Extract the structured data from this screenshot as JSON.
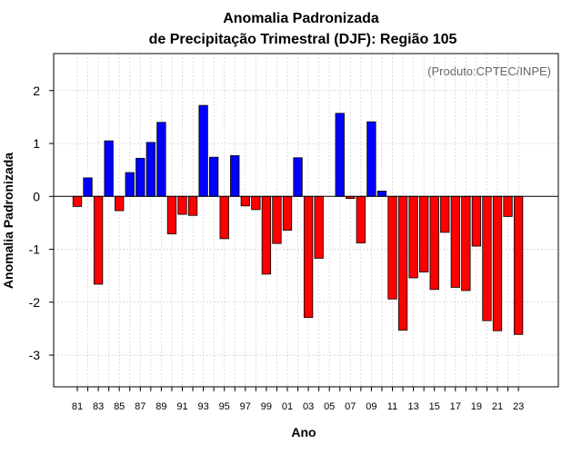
{
  "chart_data": {
    "type": "bar",
    "title": "Anomalia Padronizada",
    "subtitle": "de Precipitação Trimestral (DJF): Região 105",
    "xlabel": "Ano",
    "ylabel": "Anomalia Padronizada",
    "annotation": "(Produto:CPTEC/INPE)",
    "annotation_position": "top-right",
    "ylim": [
      -3.6,
      2.7
    ],
    "y_ticks": [
      -3,
      -2,
      -1,
      0,
      1,
      2
    ],
    "y_tick_labels": [
      "-3",
      "-2",
      "-1",
      "0",
      "1",
      "2"
    ],
    "x_tick_labels": [
      "81",
      "83",
      "85",
      "87",
      "89",
      "91",
      "93",
      "95",
      "97",
      "99",
      "01",
      "03",
      "05",
      "07",
      "09",
      "11",
      "13",
      "15",
      "17",
      "19",
      "21",
      "23"
    ],
    "grid": "vertical dashed",
    "positive_color": "#0000ff",
    "negative_color": "#ff0000",
    "categories": [
      "1981",
      "1982",
      "1983",
      "1984",
      "1985",
      "1986",
      "1987",
      "1988",
      "1989",
      "1990",
      "1991",
      "1992",
      "1993",
      "1994",
      "1995",
      "1996",
      "1997",
      "1998",
      "1999",
      "2000",
      "2001",
      "2002",
      "2003",
      "2004",
      "2005",
      "2006",
      "2007",
      "2008",
      "2009",
      "2010",
      "2011",
      "2012",
      "2013",
      "2014",
      "2015",
      "2016",
      "2017",
      "2018",
      "2019",
      "2020",
      "2021",
      "2022",
      "2023"
    ],
    "values": [
      -0.19,
      0.35,
      -1.66,
      1.05,
      -0.27,
      0.45,
      0.72,
      1.02,
      1.4,
      -0.71,
      -0.34,
      -0.36,
      1.72,
      0.74,
      -0.8,
      0.77,
      -0.18,
      -0.25,
      -1.47,
      -0.89,
      -0.64,
      0.73,
      -2.29,
      -1.17,
      0.0,
      1.57,
      -0.04,
      -0.88,
      1.41,
      0.1,
      -1.94,
      -2.53,
      -1.54,
      -1.43,
      -1.76,
      -0.68,
      -1.72,
      -1.78,
      -0.94,
      -2.35,
      -2.54,
      -0.38,
      -2.61
    ]
  }
}
